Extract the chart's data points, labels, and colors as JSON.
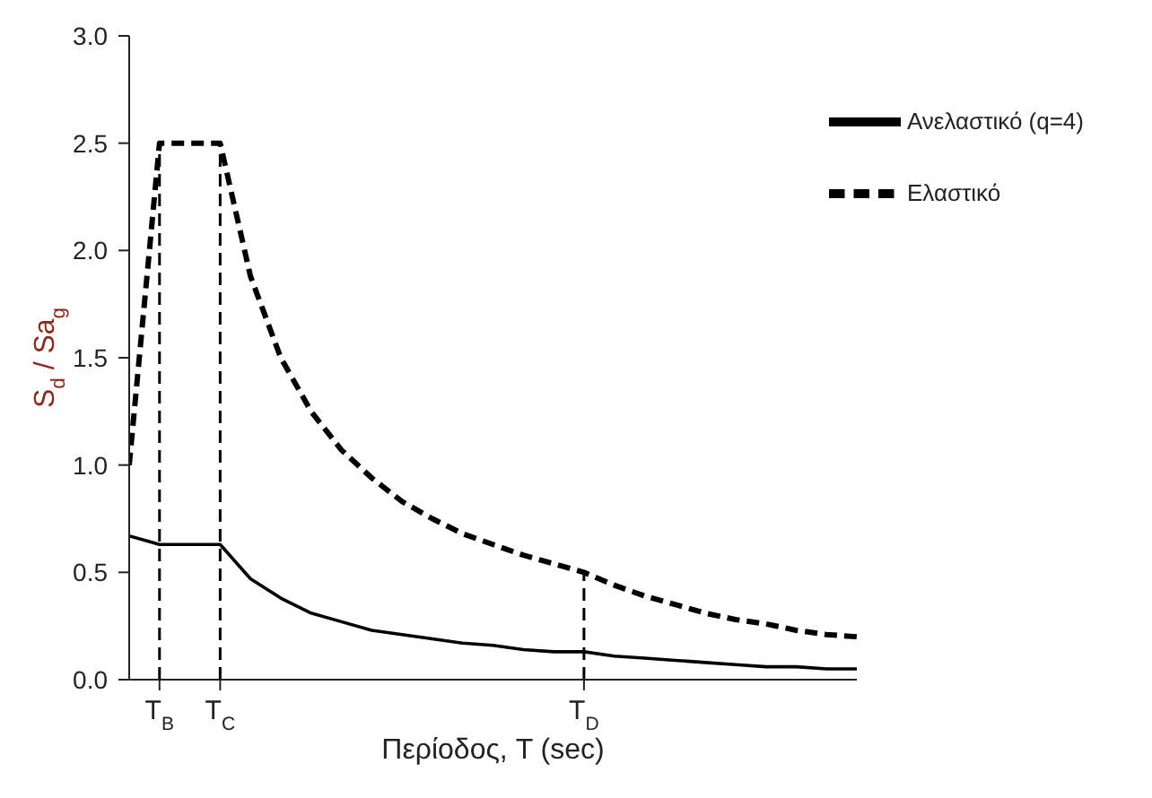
{
  "chart_data": {
    "type": "line",
    "xlabel": "Περίοδος, T (sec)",
    "ylabel": "S$_{d}$ / Sa$_{g}$",
    "categories": [
      null,
      "T$_{B}$",
      null,
      "T$_{C}$",
      null,
      null,
      null,
      null,
      null,
      null,
      null,
      null,
      null,
      null,
      null,
      "T$_{D}$",
      null,
      null,
      null,
      null,
      null,
      null,
      null,
      null,
      null
    ],
    "series": [
      {
        "name": "Ελαστικό",
        "color": "#000000",
        "line_style": "dashed",
        "values": [
          1.0,
          2.5,
          2.5,
          2.5,
          1.88,
          1.5,
          1.25,
          1.07,
          0.94,
          0.83,
          0.75,
          0.68,
          0.63,
          0.58,
          0.54,
          0.5,
          0.44,
          0.39,
          0.35,
          0.31,
          0.28,
          0.26,
          0.23,
          0.21,
          0.2
        ]
      },
      {
        "name": "Ανελαστικό (q=4)",
        "color": "#000000",
        "line_style": "solid",
        "values": [
          0.67,
          0.63,
          0.63,
          0.63,
          0.47,
          0.38,
          0.31,
          0.27,
          0.23,
          0.21,
          0.19,
          0.17,
          0.16,
          0.14,
          0.13,
          0.13,
          0.11,
          0.1,
          0.09,
          0.08,
          0.07,
          0.06,
          0.06,
          0.05,
          0.05
        ]
      }
    ],
    "ylim": [
      0,
      3
    ],
    "yticks": [
      {
        "value": 0,
        "label": "0.0"
      },
      {
        "value": 0.5,
        "label": "0.5"
      },
      {
        "value": 1,
        "label": "1.0"
      },
      {
        "value": 1.5,
        "label": "1.5"
      },
      {
        "value": 2,
        "label": "2.0"
      },
      {
        "value": 2.5,
        "label": "2.5"
      },
      {
        "value": 3,
        "label": "3.0"
      }
    ],
    "ref_lines": [
      {
        "axis": "x",
        "value": "T$_{B}$",
        "color": "#000000",
        "line_style": "dashed"
      },
      {
        "axis": "x",
        "value": "T$_{C}$",
        "color": "#000000",
        "line_style": "dashed"
      },
      {
        "axis": "x",
        "value": "T$_{D}$",
        "color": "#000000",
        "line_style": "dashed"
      }
    ],
    "legend": "top right",
    "grid": false,
    "marker": "none"
  }
}
